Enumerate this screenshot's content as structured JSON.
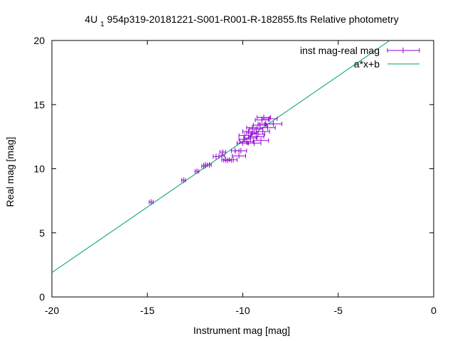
{
  "chart_data": {
    "type": "scatter",
    "title_prefix": "4U",
    "title_sub": "1",
    "title_rest": "954p319-20181221-S001-R001-R-182855.fts Relative photometry",
    "xlabel": "Instrument mag [mag]",
    "ylabel": "Real mag [mag]",
    "xlim": [
      -20,
      0
    ],
    "ylim": [
      0,
      20
    ],
    "xticks": [
      -20,
      -15,
      -10,
      -5,
      0
    ],
    "yticks": [
      0,
      5,
      10,
      15,
      20
    ],
    "grid": false,
    "legend_position": "top-right",
    "colors": {
      "data": "#9400d3",
      "fit": "#009e73"
    },
    "series": [
      {
        "name": "inst mag-real mag",
        "style": "errorbars",
        "points": [
          {
            "x": -14.8,
            "y": 7.4,
            "xerr": 0.1
          },
          {
            "x": -13.1,
            "y": 9.1,
            "xerr": 0.1
          },
          {
            "x": -12.4,
            "y": 9.8,
            "xerr": 0.1
          },
          {
            "x": -12.05,
            "y": 10.2,
            "xerr": 0.1
          },
          {
            "x": -11.95,
            "y": 10.3,
            "xerr": 0.1
          },
          {
            "x": -11.75,
            "y": 10.3,
            "xerr": 0.1
          },
          {
            "x": -11.4,
            "y": 10.95,
            "xerr": 0.15
          },
          {
            "x": -11.1,
            "y": 11.0,
            "xerr": 0.15
          },
          {
            "x": -11.05,
            "y": 11.3,
            "xerr": 0.15
          },
          {
            "x": -10.9,
            "y": 10.7,
            "xerr": 0.2
          },
          {
            "x": -10.8,
            "y": 10.65,
            "xerr": 0.2
          },
          {
            "x": -10.5,
            "y": 10.7,
            "xerr": 0.2
          },
          {
            "x": -10.4,
            "y": 11.4,
            "xerr": 0.2
          },
          {
            "x": -10.2,
            "y": 11.0,
            "xerr": 0.35
          },
          {
            "x": -10.1,
            "y": 11.4,
            "xerr": 0.3
          },
          {
            "x": -10.0,
            "y": 12.0,
            "xerr": 0.3
          },
          {
            "x": -9.9,
            "y": 12.3,
            "xerr": 0.3
          },
          {
            "x": -9.9,
            "y": 12.6,
            "xerr": 0.3
          },
          {
            "x": -9.8,
            "y": 12.1,
            "xerr": 0.35
          },
          {
            "x": -9.7,
            "y": 12.9,
            "xerr": 0.3
          },
          {
            "x": -9.6,
            "y": 12.4,
            "xerr": 0.35
          },
          {
            "x": -9.5,
            "y": 12.8,
            "xerr": 0.3
          },
          {
            "x": -9.5,
            "y": 13.2,
            "xerr": 0.3
          },
          {
            "x": -9.4,
            "y": 12.0,
            "xerr": 0.35
          },
          {
            "x": -9.3,
            "y": 12.5,
            "xerr": 0.4
          },
          {
            "x": -9.3,
            "y": 13.1,
            "xerr": 0.35
          },
          {
            "x": -9.2,
            "y": 12.7,
            "xerr": 0.35
          },
          {
            "x": -9.1,
            "y": 13.4,
            "xerr": 0.35
          },
          {
            "x": -9.05,
            "y": 12.2,
            "xerr": 0.4
          },
          {
            "x": -9.0,
            "y": 13.8,
            "xerr": 0.35
          },
          {
            "x": -8.95,
            "y": 12.9,
            "xerr": 0.35
          },
          {
            "x": -8.9,
            "y": 14.0,
            "xerr": 0.35
          },
          {
            "x": -8.8,
            "y": 13.5,
            "xerr": 0.4
          },
          {
            "x": -8.7,
            "y": 13.2,
            "xerr": 0.4
          },
          {
            "x": -8.6,
            "y": 13.9,
            "xerr": 0.4
          },
          {
            "x": -8.4,
            "y": 13.5,
            "xerr": 0.45
          }
        ]
      },
      {
        "name": "a*x+b",
        "style": "line",
        "x": [
          -20,
          -2.3
        ],
        "y": [
          1.9,
          20
        ]
      }
    ]
  }
}
